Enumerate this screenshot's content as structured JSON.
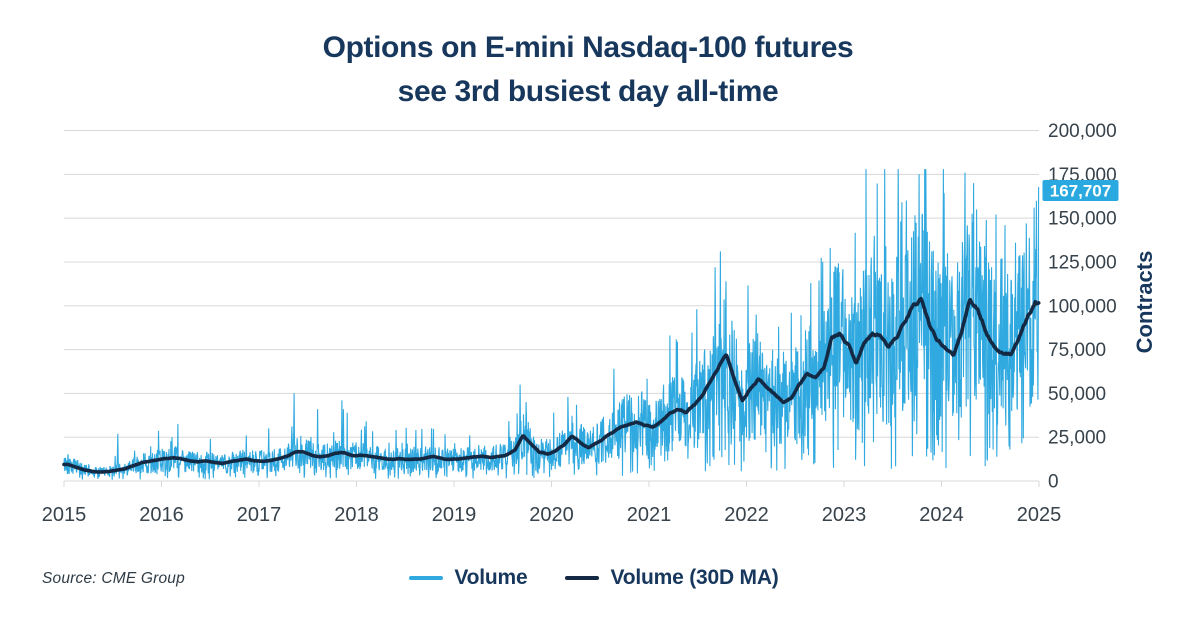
{
  "title": {
    "line1": "Options on E-mini Nasdaq-100 futures",
    "line2": "see 3rd busiest day all-time"
  },
  "source": "Source: CME Group",
  "legend": [
    {
      "label": "Volume",
      "color": "#2FA9DF"
    },
    {
      "label": "Volume (30D MA)",
      "color": "#132944"
    }
  ],
  "axis": {
    "ylabel": "Contracts",
    "x_ticks": [
      "2015",
      "2016",
      "2017",
      "2018",
      "2019",
      "2020",
      "2021",
      "2022",
      "2023",
      "2024",
      "2025"
    ],
    "y_ticks": [
      "0",
      "25,000",
      "50,000",
      "75,000",
      "100,000",
      "125,000",
      "150,000",
      "175,000",
      "200,000"
    ]
  },
  "callout": {
    "value": "167,707",
    "bg": "#29A9E0",
    "text_color": "#ffffff"
  },
  "colors": {
    "title": "#17375C",
    "tick_text": "#37424B",
    "gridline": "#D8D8D8",
    "volume": "#2FA9DF",
    "ma": "#132944"
  },
  "chart_data": {
    "type": "line",
    "title": "Options on E-mini Nasdaq-100 futures see 3rd busiest day all-time",
    "xlabel": "",
    "ylabel": "Contracts",
    "xlim": [
      2015,
      2025
    ],
    "ylim": [
      0,
      200000
    ],
    "grid": "horizontal",
    "legend_position": "bottom",
    "x_tick_labels": [
      "2015",
      "2016",
      "2017",
      "2018",
      "2019",
      "2020",
      "2021",
      "2022",
      "2023",
      "2024",
      "2025"
    ],
    "y_tick_step": 25000,
    "series": [
      {
        "name": "Volume",
        "color": "#2FA9DF",
        "kind": "daily-volume",
        "last_value": 167707,
        "notable_spikes": [
          [
            2015.55,
            27000
          ],
          [
            2016.5,
            24000
          ],
          [
            2016.87,
            26000
          ],
          [
            2017.1,
            30000
          ],
          [
            2017.36,
            50000
          ],
          [
            2017.6,
            41000
          ],
          [
            2017.85,
            46000
          ],
          [
            2018.1,
            34000
          ],
          [
            2018.77,
            30000
          ],
          [
            2019.16,
            26000
          ],
          [
            2019.68,
            55000
          ],
          [
            2019.74,
            45000
          ],
          [
            2020.17,
            48000
          ],
          [
            2020.64,
            64000
          ],
          [
            2020.8,
            49000
          ],
          [
            2021.15,
            55000
          ],
          [
            2021.49,
            98000
          ],
          [
            2021.68,
            122000
          ],
          [
            2021.73,
            131000
          ],
          [
            2021.79,
            114000
          ],
          [
            2022.1,
            95000
          ],
          [
            2022.33,
            88000
          ],
          [
            2022.46,
            96000
          ],
          [
            2022.66,
            113000
          ],
          [
            2022.78,
            125000
          ],
          [
            2022.86,
            133000
          ],
          [
            2022.92,
            120000
          ],
          [
            2023.2,
            120000
          ],
          [
            2023.31,
            140000
          ],
          [
            2023.43,
            134000
          ],
          [
            2023.54,
            128000
          ],
          [
            2023.64,
            160000
          ],
          [
            2023.77,
            175000
          ],
          [
            2023.9,
            131000
          ],
          [
            2024.06,
            130000
          ],
          [
            2024.24,
            176000
          ],
          [
            2024.33,
            170000
          ],
          [
            2024.46,
            149000
          ],
          [
            2024.56,
            152000
          ],
          [
            2024.62,
            127000
          ],
          [
            2024.76,
            136000
          ],
          [
            2024.87,
            147000
          ],
          [
            2024.95,
            156000
          ],
          [
            2024.996,
            167707
          ]
        ]
      },
      {
        "name": "Volume (30D MA)",
        "color": "#132944",
        "kind": "monthly-ma",
        "start": "2015-01",
        "step_months": 1,
        "values_thousands": [
          9.5,
          8.0,
          6.5,
          5.5,
          5.2,
          5.6,
          6.2,
          6.8,
          8.5,
          10.0,
          10.8,
          11.5,
          12.5,
          13.2,
          12.4,
          11.2,
          10.6,
          11.0,
          10.2,
          9.6,
          10.6,
          11.4,
          12.0,
          11.2,
          11.0,
          11.6,
          12.6,
          14.2,
          16.6,
          16.8,
          14.4,
          13.6,
          14.2,
          15.6,
          15.8,
          14.2,
          14.4,
          13.6,
          13.0,
          12.4,
          12.0,
          12.4,
          12.0,
          12.6,
          13.0,
          13.6,
          12.6,
          12.0,
          12.0,
          12.6,
          13.2,
          13.6,
          13.0,
          13.6,
          14.6,
          17.5,
          25.5,
          20.5,
          16.0,
          15.0,
          16.5,
          20.0,
          25.0,
          21.5,
          18.5,
          21.0,
          24.0,
          27.0,
          31.0,
          32.5,
          33.0,
          31.0,
          30.0,
          33.0,
          38.0,
          40.0,
          39.0,
          43.0,
          47.0,
          54.0,
          62.0,
          69.5,
          56.0,
          45.0,
          52.0,
          56.0,
          52.0,
          47.5,
          43.5,
          46.0,
          53.0,
          59.0,
          56.5,
          62.0,
          79.0,
          82.0,
          77.0,
          67.0,
          79.0,
          83.0,
          82.0,
          74.0,
          79.0,
          89.0,
          101.0,
          104.0,
          90.0,
          83.0,
          79.0,
          75.0,
          89.0,
          108.0,
          101.0,
          88.0,
          80.0,
          75.0,
          74.5,
          83.0,
          93.0,
          104.0
        ]
      }
    ],
    "annotation": {
      "label": "167,707",
      "value": 167707,
      "x": 2024.996
    }
  }
}
